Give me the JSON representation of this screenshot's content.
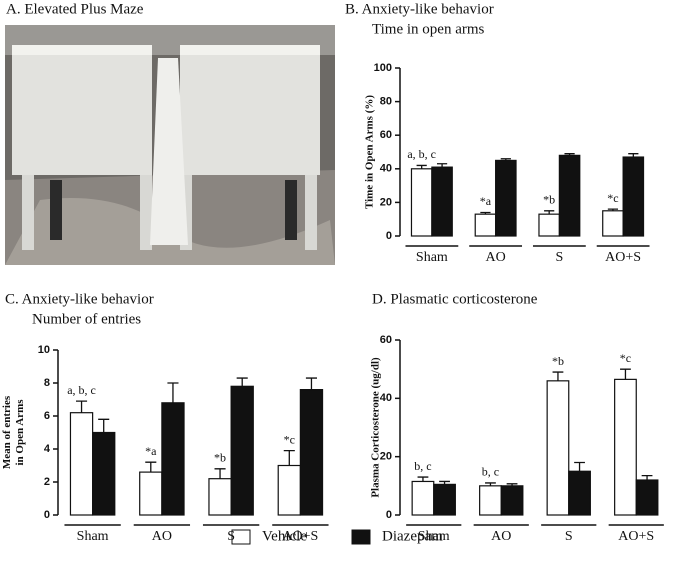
{
  "panel_a": {
    "title": "A. Elevated Plus Maze"
  },
  "chart_data": [
    {
      "type": "bar",
      "title": "B. Anxiety-like behavior",
      "subtitle": "Time in open arms",
      "y_label": [
        "Time in Open Arms (%)"
      ],
      "categories": [
        "Sham",
        "AO",
        "S",
        "AO+S"
      ],
      "series": [
        {
          "name": "Vehicle",
          "color": "#ffffff",
          "values": [
            40,
            13,
            13,
            15
          ],
          "errors": [
            2,
            1,
            2,
            1
          ]
        },
        {
          "name": "Diazepam",
          "color": "#111111",
          "values": [
            41,
            45,
            48,
            47
          ],
          "errors": [
            2,
            1,
            1,
            2
          ]
        }
      ],
      "annotations": [
        "a, b, c",
        "*a",
        "*b",
        "*c"
      ],
      "ylim": [
        0,
        100
      ],
      "yticks": [
        0,
        20,
        40,
        60,
        80,
        100
      ]
    },
    {
      "type": "bar",
      "title": "C. Anxiety-like behavior",
      "subtitle": "Number of entries",
      "y_label": [
        "Mean of entries",
        "in Open Arms"
      ],
      "categories": [
        "Sham",
        "AO",
        "S",
        "AO+S"
      ],
      "series": [
        {
          "name": "Vehicle",
          "color": "#ffffff",
          "values": [
            6.2,
            2.6,
            2.2,
            3.0
          ],
          "errors": [
            0.7,
            0.6,
            0.6,
            0.9
          ]
        },
        {
          "name": "Diazepam",
          "color": "#111111",
          "values": [
            5.0,
            6.8,
            7.8,
            7.6
          ],
          "errors": [
            0.8,
            1.2,
            0.5,
            0.7
          ]
        }
      ],
      "annotations": [
        "a, b, c",
        "*a",
        "*b",
        "*c"
      ],
      "ylim": [
        0,
        10
      ],
      "yticks": [
        0,
        2,
        4,
        6,
        8,
        10
      ]
    },
    {
      "type": "bar",
      "title": "D. Plasmatic corticosterone",
      "y_label": [
        "Plasma Corticosterone (ug/dl)"
      ],
      "categories": [
        "Sham",
        "AO",
        "S",
        "AO+S"
      ],
      "series": [
        {
          "name": "Vehicle",
          "color": "#ffffff",
          "values": [
            11.5,
            10,
            46,
            46.5
          ],
          "errors": [
            1.5,
            1,
            3,
            3.5
          ]
        },
        {
          "name": "Diazepam",
          "color": "#111111",
          "values": [
            10.5,
            10,
            15,
            12
          ],
          "errors": [
            1,
            0.7,
            3,
            1.5
          ]
        }
      ],
      "annotations": [
        "b, c",
        "b, c",
        "*b",
        "*c"
      ],
      "ylim": [
        0,
        60
      ],
      "yticks": [
        0,
        20,
        40,
        60
      ]
    }
  ]
}
